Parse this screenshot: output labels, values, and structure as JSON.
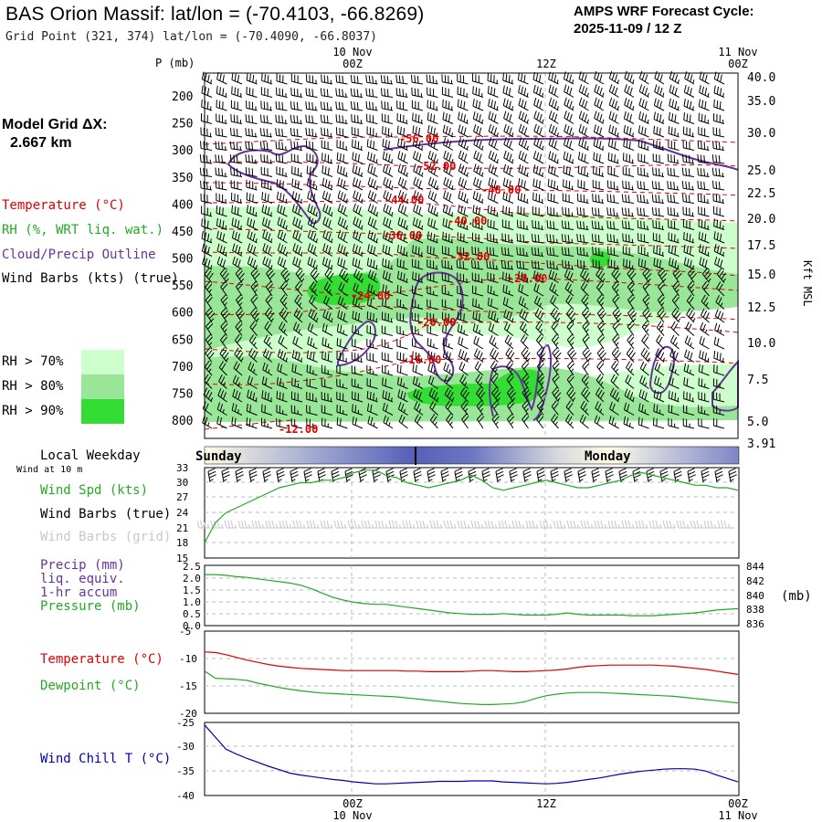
{
  "header": {
    "title": "BAS Orion Massif:  lat/lon = (-70.4103, -66.8269)",
    "grid_point": "Grid Point (321, 374) lat/lon = (-70.4090, -66.8037)",
    "cycle_line1": "AMPS WRF Forecast Cycle:",
    "cycle_line2": "2025-11-09 / 12  Z"
  },
  "time_axis": {
    "top_left": [
      "10 Nov",
      "00Z"
    ],
    "top_mid": "12Z",
    "top_right": [
      "11 Nov",
      "00Z"
    ],
    "bottom_left": [
      "00Z",
      "10 Nov"
    ],
    "bottom_mid": "12Z",
    "bottom_right": [
      "00Z",
      "11 Nov"
    ]
  },
  "model_grid": {
    "line1": "Model Grid ΔX:",
    "line2": "2.667 km"
  },
  "legend": {
    "temperature": "Temperature (°C)",
    "rh": "RH (%, WRT liq. wat.)",
    "cloud": "Cloud/Precip Outline",
    "wind": "Wind Barbs (kts) (true)"
  },
  "rh_key": [
    {
      "label": "RH > 70%",
      "color": "#ccffcc"
    },
    {
      "label": "RH > 80%",
      "color": "#99e699"
    },
    {
      "label": "RH > 90%",
      "color": "#33dd33"
    }
  ],
  "weekday": {
    "title": "Local Weekday",
    "left": "Sunday",
    "right": "Monday",
    "wind_note": "Wind at 10 m"
  },
  "panels": {
    "wind": {
      "spd": "Wind Spd (kts)",
      "barbs_true": "Wind Barbs (true)",
      "barbs_grid": "Wind Barbs (grid)"
    },
    "precip": {
      "l1": "Precip (mm)",
      "l2": "liq. equiv.",
      "l3": "1-hr accum",
      "l4": "Pressure (mb)",
      "unit": "(mb)"
    },
    "temp": {
      "t": "Temperature (°C)",
      "d": "Dewpoint (°C)"
    },
    "chill": {
      "l": "Wind Chill T (°C)"
    }
  },
  "colors": {
    "temperature": "#dd0000",
    "rh": "#22aa22",
    "cloud": "#663399",
    "wind_chill": "#0000aa"
  },
  "chart_data": [
    {
      "type": "heatmap",
      "description_axes": {
        "left_title": "P (mb)",
        "right_title": "Kft MSL"
      },
      "pressure_ticks": [
        200,
        250,
        300,
        350,
        400,
        450,
        500,
        550,
        600,
        650,
        700,
        750,
        800
      ],
      "height_ticks": [
        "40.0",
        "35.0",
        "30.0",
        "25.0",
        "22.5",
        "20.0",
        "17.5",
        "15.0",
        "12.5",
        "10.0",
        "7.5",
        "5.0",
        "3.91"
      ],
      "temperature_contour_labels": [
        "-56.00",
        "-52.00",
        "-48.00",
        "-44.00",
        "-40.00",
        "-36.00",
        "-32.00",
        "-28.00",
        "-24.00",
        "-20.00",
        "-16.00",
        "-12.00"
      ]
    },
    {
      "type": "line",
      "name": "wind_speed",
      "y_ticks": [
        33,
        30,
        27,
        24,
        21,
        18,
        15
      ],
      "ylim": [
        15,
        33
      ],
      "values": [
        18,
        22,
        24,
        25,
        26,
        27,
        28,
        29,
        29.5,
        30,
        30,
        30.5,
        30.5,
        31,
        32,
        32.5,
        32.5,
        31.5,
        31,
        30,
        29.5,
        29,
        29.5,
        30,
        30.5,
        31.5,
        30.5,
        29,
        28.5,
        29,
        29.5,
        30,
        30.5,
        30,
        29.5,
        29,
        29,
        29.5,
        30,
        30.5,
        31.5,
        32,
        31.5,
        31,
        30.5,
        30,
        29.5,
        29.5,
        29,
        29,
        28.5
      ]
    },
    {
      "type": "line",
      "name": "pressure",
      "y_left_ticks": [
        "2.5",
        "2.0",
        "1.5",
        "1.0",
        "0.5",
        "0.0"
      ],
      "y_right_ticks": [
        844,
        842,
        840,
        838,
        836
      ],
      "ylim": [
        836,
        844.5
      ],
      "values": [
        843.2,
        843.2,
        843.1,
        842.9,
        842.8,
        842.6,
        842.4,
        842.2,
        842.0,
        841.7,
        841.2,
        840.6,
        840.0,
        839.6,
        839.3,
        839.1,
        839.0,
        839.0,
        838.8,
        838.6,
        838.4,
        838.2,
        838.0,
        837.8,
        837.7,
        837.6,
        837.6,
        837.6,
        837.7,
        837.6,
        837.5,
        837.5,
        837.5,
        837.6,
        837.8,
        837.6,
        837.5,
        837.5,
        837.5,
        837.5,
        837.4,
        837.4,
        837.4,
        837.5,
        837.6,
        837.7,
        837.8,
        838.0,
        838.2,
        838.3,
        838.4
      ]
    },
    {
      "type": "line",
      "name": "temperature_dewpoint",
      "y_ticks": [
        -5,
        -10,
        -15,
        -20
      ],
      "ylim": [
        -20,
        -5
      ],
      "series": [
        {
          "name": "Temperature",
          "values": [
            -8.8,
            -8.9,
            -9.3,
            -9.8,
            -10.3,
            -10.7,
            -11.1,
            -11.4,
            -11.6,
            -11.8,
            -11.9,
            -12.0,
            -12.1,
            -12.2,
            -12.2,
            -12.2,
            -12.2,
            -12.2,
            -12.2,
            -12.3,
            -12.3,
            -12.4,
            -12.4,
            -12.4,
            -12.4,
            -12.3,
            -12.2,
            -12.2,
            -12.3,
            -12.4,
            -12.4,
            -12.3,
            -12.2,
            -12.1,
            -11.9,
            -11.6,
            -11.4,
            -11.3,
            -11.2,
            -11.2,
            -11.2,
            -11.2,
            -11.2,
            -11.3,
            -11.4,
            -11.6,
            -11.8,
            -12.0,
            -12.3,
            -12.6,
            -12.9
          ]
        },
        {
          "name": "Dewpoint",
          "values": [
            -12.3,
            -13.6,
            -13.7,
            -13.8,
            -14.0,
            -14.5,
            -14.9,
            -15.3,
            -15.6,
            -15.9,
            -16.1,
            -16.3,
            -16.4,
            -16.5,
            -16.6,
            -16.7,
            -16.8,
            -16.9,
            -17.0,
            -17.2,
            -17.4,
            -17.6,
            -17.8,
            -18.0,
            -18.2,
            -18.3,
            -18.4,
            -18.4,
            -18.3,
            -18.2,
            -17.9,
            -17.3,
            -16.8,
            -16.5,
            -16.3,
            -16.2,
            -16.2,
            -16.2,
            -16.3,
            -16.4,
            -16.5,
            -16.6,
            -16.7,
            -16.8,
            -16.9,
            -17.1,
            -17.3,
            -17.5,
            -17.7,
            -17.9,
            -18.1
          ]
        }
      ]
    },
    {
      "type": "line",
      "name": "wind_chill",
      "y_ticks": [
        -25,
        -30,
        -35,
        -40
      ],
      "ylim": [
        -40,
        -25
      ],
      "values": [
        -25.5,
        -28.0,
        -30.5,
        -31.5,
        -32.4,
        -33.2,
        -34.0,
        -34.7,
        -35.4,
        -35.8,
        -36.1,
        -36.4,
        -36.7,
        -36.9,
        -37.2,
        -37.4,
        -37.6,
        -37.6,
        -37.5,
        -37.4,
        -37.3,
        -37.2,
        -37.1,
        -37.1,
        -37.1,
        -37.0,
        -37.0,
        -37.0,
        -37.2,
        -37.3,
        -37.4,
        -37.5,
        -37.6,
        -37.5,
        -37.3,
        -37.0,
        -36.7,
        -36.4,
        -36.0,
        -35.6,
        -35.3,
        -35.0,
        -34.8,
        -34.6,
        -34.5,
        -34.5,
        -34.6,
        -35.0,
        -35.8,
        -36.5,
        -37.2
      ]
    }
  ]
}
